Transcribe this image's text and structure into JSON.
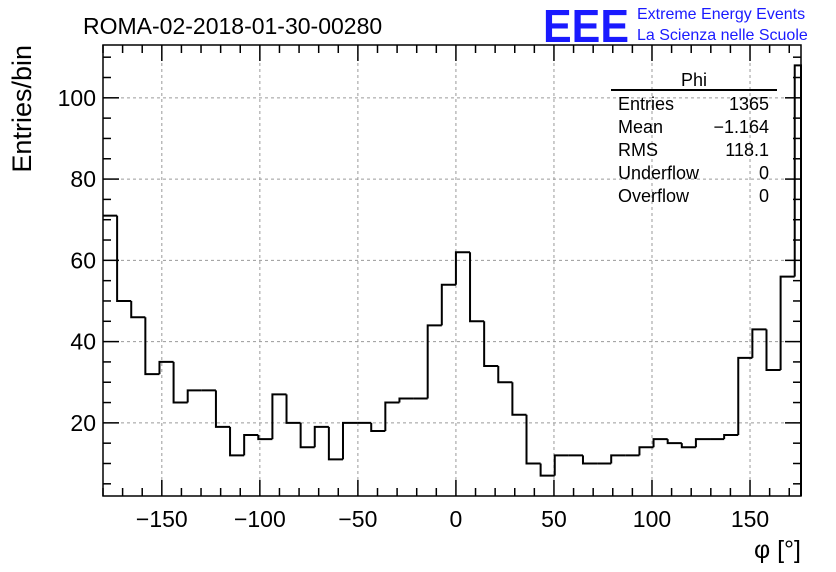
{
  "title": "ROMA-02-2018-01-30-00280",
  "logo": {
    "text": "EEE",
    "line1": "Extreme Energy Events",
    "line2": "La Scienza nelle Scuole",
    "color": "#1a1aff"
  },
  "stats": {
    "name": "Phi",
    "rows": [
      {
        "label": "Entries",
        "value": "1365"
      },
      {
        "label": "Mean",
        "value": "−1.164"
      },
      {
        "label": "RMS",
        "value": "118.1"
      },
      {
        "label": "Underflow",
        "value": "0"
      },
      {
        "label": "Overflow",
        "value": "0"
      }
    ]
  },
  "chart_data": {
    "type": "histogram",
    "xlabel": "φ [°]",
    "ylabel": "Entries/bin",
    "xlim": [
      -180,
      176
    ],
    "ylim": [
      2,
      113
    ],
    "bin_width": 7.2,
    "bin_start": -180,
    "values": [
      71,
      50,
      46,
      32,
      35,
      25,
      28,
      28,
      19,
      12,
      17,
      16,
      27,
      20,
      14,
      19,
      11,
      20,
      20,
      18,
      25,
      26,
      26,
      44,
      54,
      62,
      45,
      34,
      30,
      22,
      10,
      7,
      12,
      12,
      10,
      10,
      12,
      12,
      14,
      16,
      15,
      14,
      16,
      16,
      17,
      36,
      43,
      33,
      56,
      108
    ],
    "x_ticks": [
      -150,
      -100,
      -50,
      0,
      50,
      100,
      150
    ],
    "x_tick_labels": [
      "−150",
      "−100",
      "−50",
      "0",
      "50",
      "100",
      "150"
    ],
    "y_ticks": [
      20,
      40,
      60,
      80,
      100
    ],
    "y_tick_labels": [
      "20",
      "40",
      "60",
      "80",
      "100"
    ],
    "grid": true,
    "line_color": "#000000"
  }
}
